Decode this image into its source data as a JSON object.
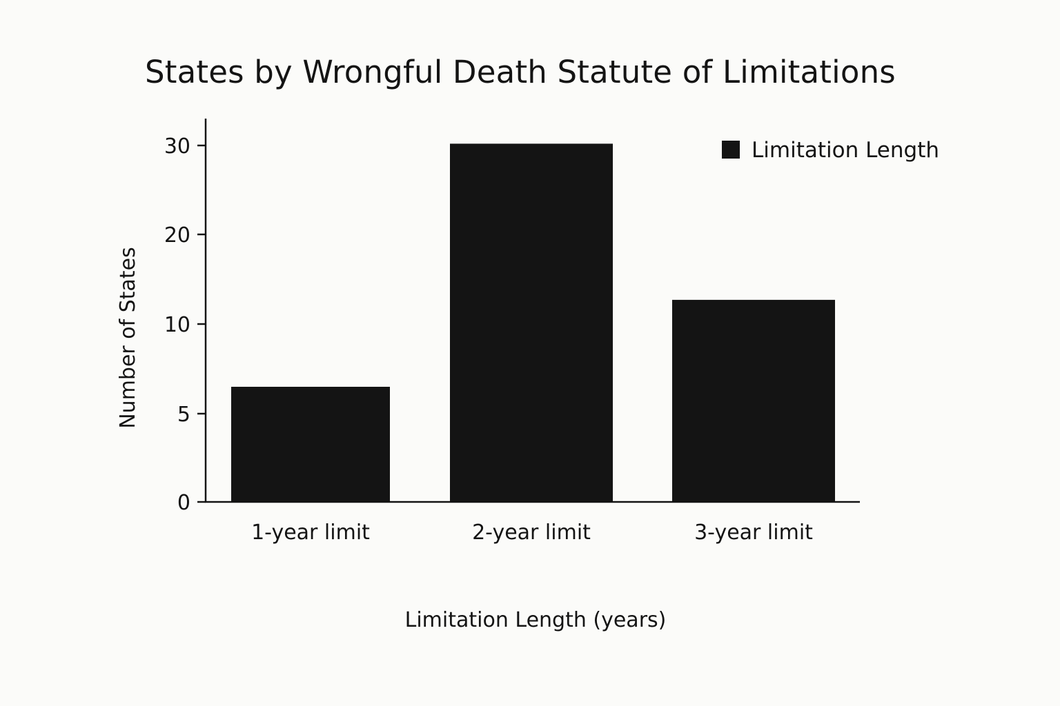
{
  "chart_data": {
    "type": "bar",
    "title": "States by Wrongful Death Statute of Limitations",
    "xlabel": "Limitation Length (years)",
    "ylabel": "Number of States",
    "categories": [
      "1-year limit",
      "2-year limit",
      "3-year limit"
    ],
    "series": [
      {
        "name": "Limitation Length",
        "values": [
          6.5,
          30.2,
          12.7
        ],
        "color": "#141414"
      }
    ],
    "y_ticks": [
      0,
      5,
      10,
      20,
      30
    ],
    "ylim": [
      0,
      32
    ],
    "grid": false,
    "legend_position": "top-right"
  }
}
